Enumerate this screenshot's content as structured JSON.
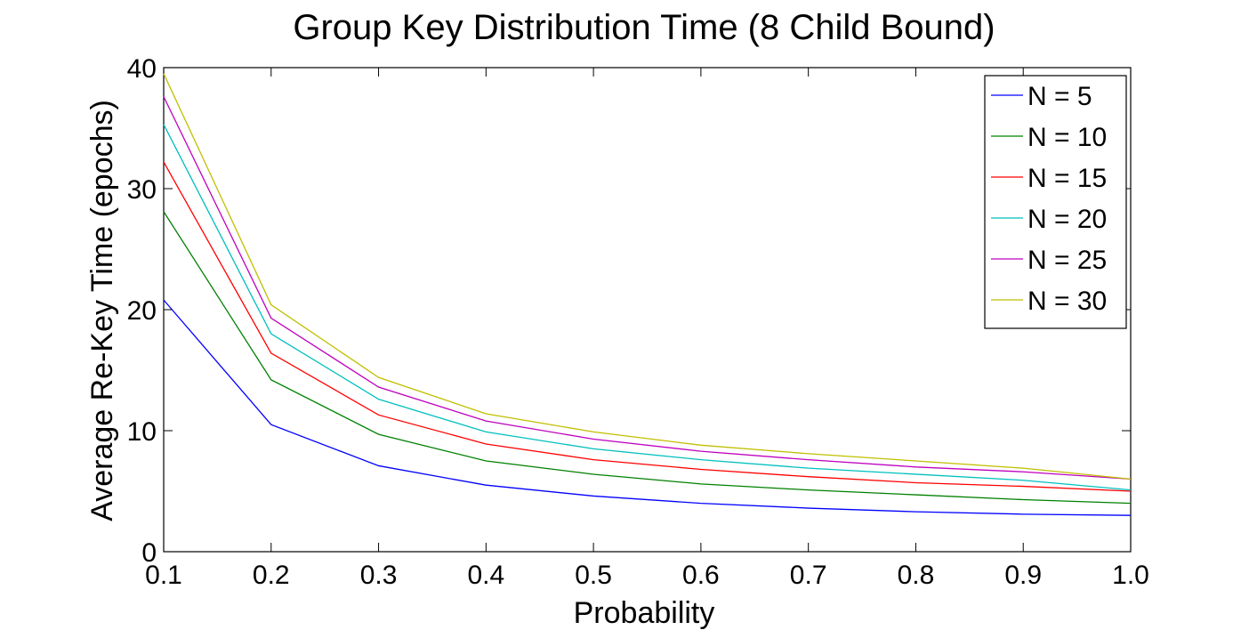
{
  "chart_data": {
    "type": "line",
    "title": "Group Key Distribution Time (8 Child Bound)",
    "xlabel": "Probability",
    "ylabel": "Average Re-Key Time (epochs)",
    "x": [
      0.1,
      0.2,
      0.3,
      0.4,
      0.5,
      0.6,
      0.7,
      0.8,
      0.9,
      1.0
    ],
    "xlim": [
      0.1,
      1.0
    ],
    "ylim": [
      0,
      40
    ],
    "xticks": [
      "0.1",
      "0.2",
      "0.3",
      "0.4",
      "0.5",
      "0.6",
      "0.7",
      "0.8",
      "0.9",
      "1.0"
    ],
    "yticks": [
      "0",
      "10",
      "20",
      "30",
      "40"
    ],
    "grid": false,
    "legend_position": "top-right",
    "series": [
      {
        "name": "N = 5",
        "color": "#0000ff",
        "values": [
          20.8,
          10.5,
          7.1,
          5.5,
          4.6,
          4.0,
          3.6,
          3.3,
          3.1,
          3.0
        ]
      },
      {
        "name": "N = 10",
        "color": "#008000",
        "values": [
          28.1,
          14.2,
          9.7,
          7.5,
          6.4,
          5.6,
          5.1,
          4.7,
          4.3,
          4.0
        ]
      },
      {
        "name": "N = 15",
        "color": "#ff0000",
        "values": [
          32.2,
          16.4,
          11.3,
          8.9,
          7.6,
          6.8,
          6.2,
          5.7,
          5.4,
          5.0
        ]
      },
      {
        "name": "N = 20",
        "color": "#00bfbf",
        "values": [
          35.3,
          18.0,
          12.6,
          9.9,
          8.5,
          7.6,
          6.9,
          6.4,
          5.9,
          5.1
        ]
      },
      {
        "name": "N = 25",
        "color": "#bf00bf",
        "values": [
          37.6,
          19.3,
          13.6,
          10.8,
          9.3,
          8.3,
          7.6,
          7.0,
          6.6,
          6.0
        ]
      },
      {
        "name": "N = 30",
        "color": "#bfbf00",
        "values": [
          39.5,
          20.4,
          14.4,
          11.4,
          9.9,
          8.8,
          8.1,
          7.5,
          6.9,
          6.0
        ]
      }
    ]
  }
}
